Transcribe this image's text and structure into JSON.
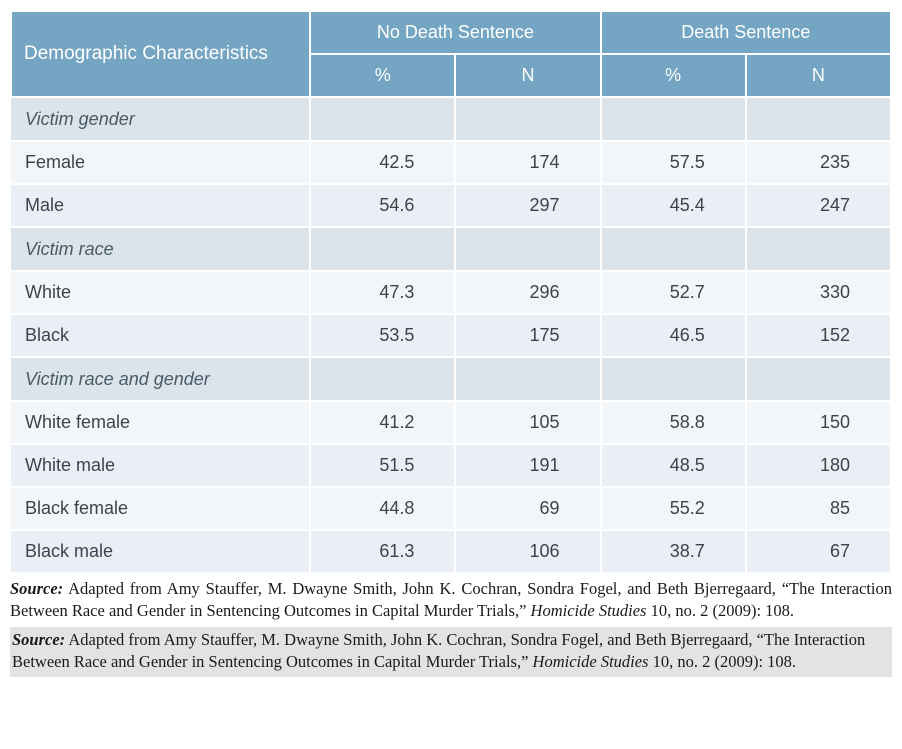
{
  "table": {
    "header": {
      "demographic": "Demographic Characteristics",
      "group1": "No Death Sentence",
      "group2": "Death Sentence",
      "pct": "%",
      "n": "N"
    },
    "colors": {
      "header_bg": "#74a5c2",
      "header_text": "#ffffff",
      "cat_bg": "#dbe4eb",
      "row_bg": "#f2f6f9",
      "row_alt_bg": "#e9eff4",
      "border": "#ffffff"
    },
    "sections": [
      {
        "category": "Victim gender",
        "rows": [
          {
            "label": "Female",
            "p1": "42.5",
            "n1": "174",
            "p2": "57.5",
            "n2": "235"
          },
          {
            "label": "Male",
            "p1": "54.6",
            "n1": "297",
            "p2": "45.4",
            "n2": "247"
          }
        ]
      },
      {
        "category": "Victim race",
        "rows": [
          {
            "label": "White",
            "p1": "47.3",
            "n1": "296",
            "p2": "52.7",
            "n2": "330"
          },
          {
            "label": "Black",
            "p1": "53.5",
            "n1": "175",
            "p2": "46.5",
            "n2": "152"
          }
        ]
      },
      {
        "category": "Victim race and gender",
        "rows": [
          {
            "label": "White female",
            "p1": "41.2",
            "n1": "105",
            "p2": "58.8",
            "n2": "150"
          },
          {
            "label": "White male",
            "p1": "51.5",
            "n1": "191",
            "p2": "48.5",
            "n2": "180"
          },
          {
            "label": "Black female",
            "p1": "44.8",
            "n1": "69",
            "p2": "55.2",
            "n2": "85"
          },
          {
            "label": "Black male",
            "p1": "61.3",
            "n1": "106",
            "p2": "38.7",
            "n2": "67"
          }
        ]
      }
    ]
  },
  "source": {
    "label": "Source:",
    "text_pre": " Adapted from Amy Stauffer, M. Dwayne Smith, John K. Cochran, Sondra Fogel, and Beth Bjerregaard, “The Interaction Between Race and Gender in Sentencing Outcomes in Capital Murder Trials,” ",
    "journal": "Homicide Studies",
    "text_post": " 10, no. 2 (2009): 108."
  }
}
